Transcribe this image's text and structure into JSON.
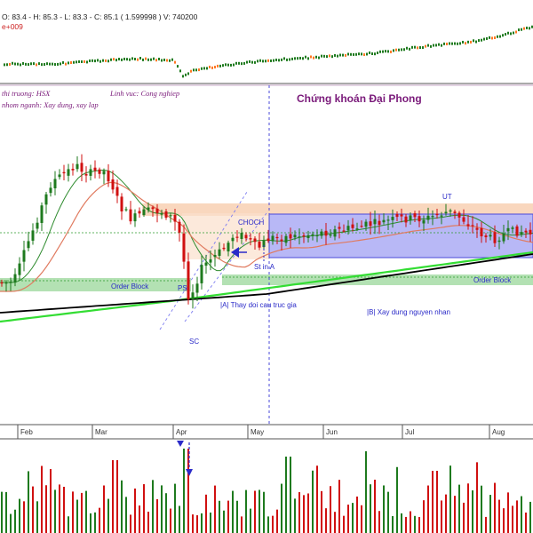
{
  "header": {
    "ohlc_line": "O: 83.4 - H: 85.3 - L: 83.3 - C: 85.1 ( 1.599998 ) V: 740200",
    "scale_line": "e+009"
  },
  "info": {
    "market": "thi truong: HSX",
    "sector": "Linh vuc: Cong nghiep",
    "industry_group": "nhom nganh: Xay dung, xay lap",
    "brand": "Chứng khoán Đại Phong"
  },
  "annotations": {
    "order_block_left": "Order Block",
    "order_block_right": "Order Block",
    "choch": "CHOCH",
    "st_in_a": "St in A",
    "ps": "PS",
    "sc": "SC",
    "ut": "UT",
    "phase_a": "|A| Thay doi cau truc gia",
    "phase_b": "|B| Xay dung nguyen nhan"
  },
  "chart_data": {
    "type": "candlestick",
    "months": [
      "Feb",
      "Mar",
      "Apr",
      "May",
      "Jun",
      "Jul",
      "Aug"
    ],
    "colors": {
      "up": "#1e7a1e",
      "down": "#d01010",
      "ma_fast": "#2e8b2e",
      "ma_mid": "#e07a5f",
      "ma_bright": "#33dd33",
      "ma_slow": "#000000",
      "range_box": "#7a7af0",
      "supply_zone": "#f7c9a8",
      "order_block": "#7ccf7c",
      "marker_blue": "#1a1acc",
      "brand": "#7a1a7a"
    }
  }
}
